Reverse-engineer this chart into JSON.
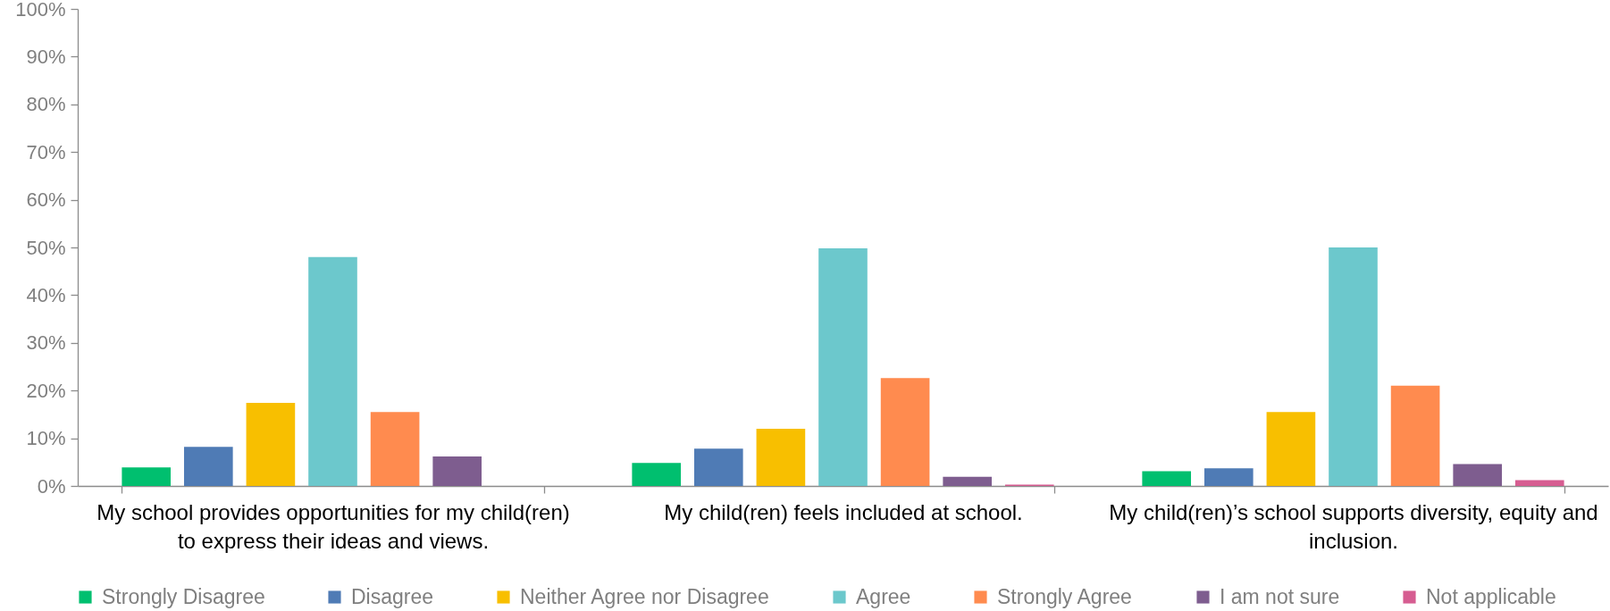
{
  "chart_data": {
    "type": "bar",
    "categories": [
      "My school provides opportunities for my child(ren) to express their ideas and views.",
      "My child(ren) feels included at school.",
      "My child(ren)’s school supports diversity, equity and inclusion."
    ],
    "series": [
      {
        "name": "Strongly Disagree",
        "color": "#00bf6f",
        "values": [
          3.9,
          4.8,
          3.1
        ]
      },
      {
        "name": "Disagree",
        "color": "#4f7bb5",
        "values": [
          8.2,
          7.8,
          3.7
        ]
      },
      {
        "name": "Neither Agree nor Disagree",
        "color": "#f8bf00",
        "values": [
          17.4,
          12.0,
          15.5
        ]
      },
      {
        "name": "Agree",
        "color": "#6cc8cc",
        "values": [
          48.0,
          49.8,
          50.0
        ]
      },
      {
        "name": "Strongly Agree",
        "color": "#ff8b4f",
        "values": [
          15.5,
          22.6,
          21.0
        ]
      },
      {
        "name": "I am not sure",
        "color": "#7e5d8f",
        "values": [
          6.2,
          1.9,
          4.6
        ]
      },
      {
        "name": "Not applicable",
        "color": "#d65d91",
        "values": [
          null,
          0.3,
          1.2
        ]
      }
    ],
    "ylim": [
      0,
      100
    ],
    "yticks": [
      {
        "value": 0,
        "label": "0%"
      },
      {
        "value": 10,
        "label": "10%"
      },
      {
        "value": 20,
        "label": "20%"
      },
      {
        "value": 30,
        "label": "30%"
      },
      {
        "value": 40,
        "label": "40%"
      },
      {
        "value": 50,
        "label": "50%"
      },
      {
        "value": 60,
        "label": "60%"
      },
      {
        "value": 70,
        "label": "70%"
      },
      {
        "value": 80,
        "label": "80%"
      },
      {
        "value": 90,
        "label": "90%"
      },
      {
        "value": 100,
        "label": "100%"
      }
    ],
    "legend": "bottom"
  }
}
